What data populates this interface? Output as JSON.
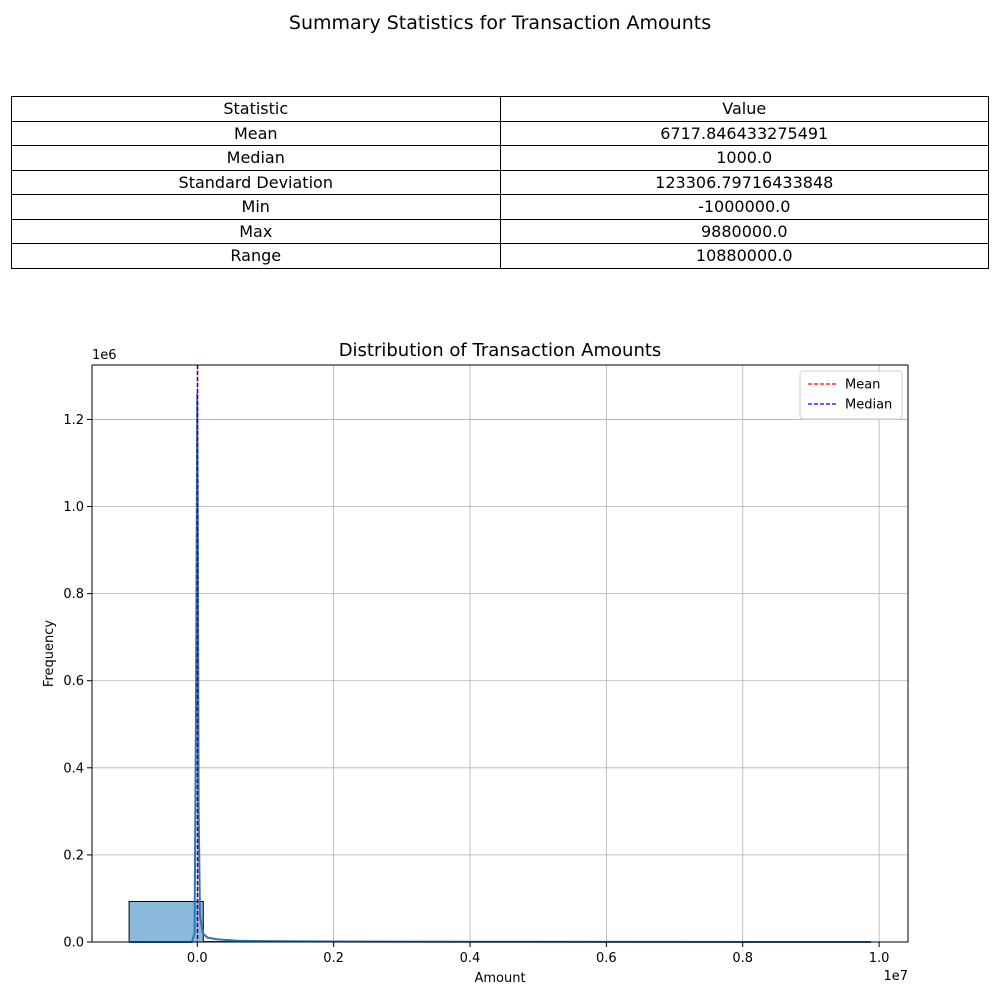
{
  "suptitle": "Summary Statistics for Transaction Amounts",
  "table": {
    "headers": [
      "Statistic",
      "Value"
    ],
    "rows": [
      [
        "Mean",
        "6717.846433275491"
      ],
      [
        "Median",
        "1000.0"
      ],
      [
        "Standard Deviation",
        "123306.79716433848"
      ],
      [
        "Min",
        "-1000000.0"
      ],
      [
        "Max",
        "9880000.0"
      ],
      [
        "Range",
        "10880000.0"
      ]
    ]
  },
  "chart_data": {
    "type": "bar",
    "title": "Distribution of Transaction Amounts",
    "xlabel": "Amount",
    "ylabel": "Frequency",
    "x_offset_label": "1e7",
    "y_offset_label": "1e6",
    "xlim": [
      -1544000,
      10424000
    ],
    "ylim": [
      0,
      1325000
    ],
    "xticks": [
      0,
      2000000,
      4000000,
      6000000,
      8000000,
      10000000
    ],
    "xtick_labels": [
      "0.0",
      "0.2",
      "0.4",
      "0.6",
      "0.8",
      "1.0"
    ],
    "yticks": [
      0,
      200000,
      400000,
      600000,
      800000,
      1000000,
      1200000
    ],
    "ytick_labels": [
      "0.0",
      "0.2",
      "0.4",
      "0.6",
      "0.8",
      "1.0",
      "1.2"
    ],
    "grid": true,
    "legend_position": "top-right",
    "histogram": {
      "bins": [
        {
          "x0": -1000000,
          "x1": 88000,
          "count": 93000
        },
        {
          "x0": 88000,
          "x1": 1176000,
          "count": 900
        },
        {
          "x0": 1176000,
          "x1": 2264000,
          "count": 200
        },
        {
          "x0": 2264000,
          "x1": 3352000,
          "count": 80
        },
        {
          "x0": 3352000,
          "x1": 4440000,
          "count": 40
        },
        {
          "x0": 4440000,
          "x1": 5528000,
          "count": 20
        },
        {
          "x0": 5528000,
          "x1": 6616000,
          "count": 10
        },
        {
          "x0": 6616000,
          "x1": 7704000,
          "count": 6
        },
        {
          "x0": 7704000,
          "x1": 8792000,
          "count": 4
        },
        {
          "x0": 8792000,
          "x1": 9880000,
          "count": 3
        }
      ],
      "fill": "#8bbbdc",
      "edge": "#000000"
    },
    "kde": {
      "color": "#2a78b4",
      "x": [
        -1000000,
        -80000,
        -40000,
        -20000,
        0,
        10000,
        20000,
        40000,
        80000,
        150000,
        300000,
        600000,
        1000000,
        2000000,
        4000000,
        7000000,
        9880000
      ],
      "y": [
        0,
        0,
        20000,
        500000,
        1260000,
        900000,
        300000,
        60000,
        20000,
        10000,
        6000,
        3000,
        2000,
        1000,
        500,
        200,
        0
      ]
    },
    "series": [
      {
        "name": "Mean",
        "value": 6717.846433275491,
        "color": "#ff0000",
        "style": "dashed"
      },
      {
        "name": "Median",
        "value": 1000.0,
        "color": "#0000ff",
        "style": "dashed"
      }
    ]
  }
}
